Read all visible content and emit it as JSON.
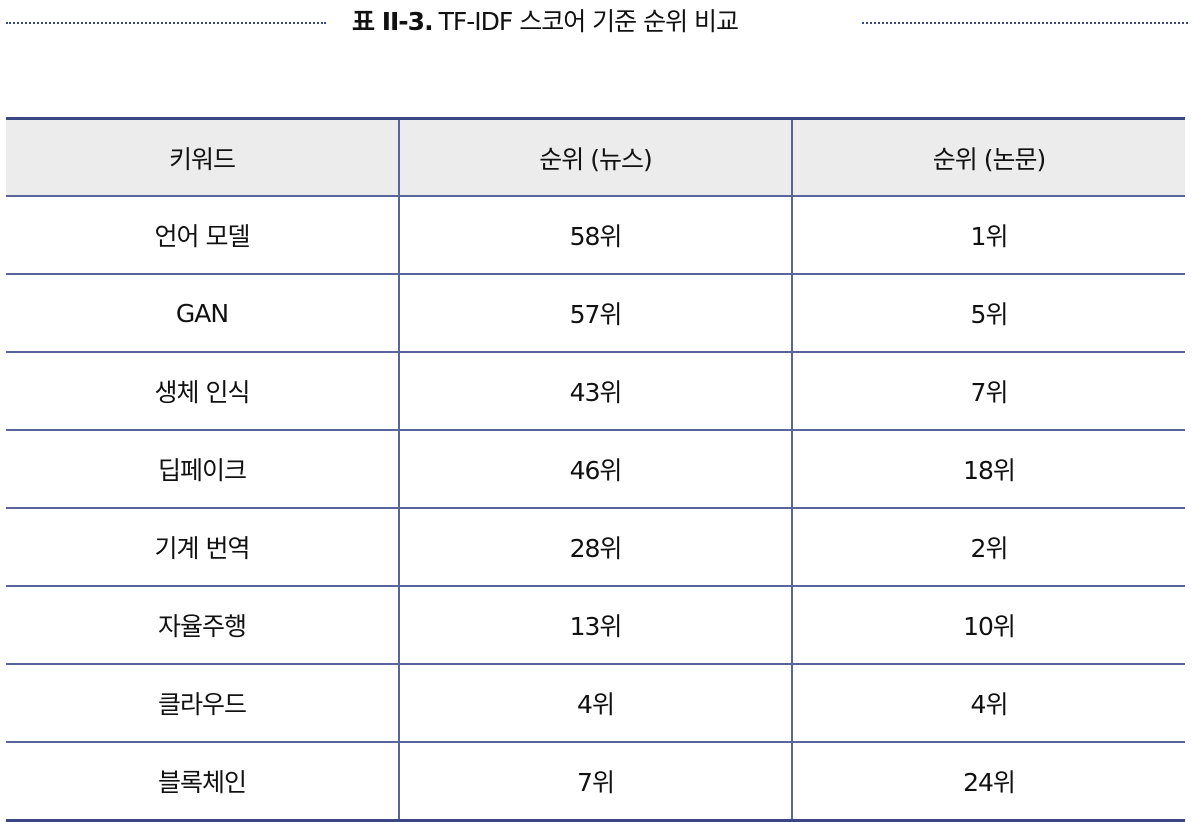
{
  "title": {
    "label": "표 II-3.",
    "text": "TF-IDF 스코어 기준 순위 비교"
  },
  "table": {
    "headers": [
      "키워드",
      "순위 (뉴스)",
      "순위 (논문)"
    ],
    "rows": [
      [
        "언어 모델",
        "58위",
        "1위"
      ],
      [
        "GAN",
        "57위",
        "5위"
      ],
      [
        "생체 인식",
        "43위",
        "7위"
      ],
      [
        "딥페이크",
        "46위",
        "18위"
      ],
      [
        "기계 번역",
        "28위",
        "2위"
      ],
      [
        "자율주행",
        "13위",
        "10위"
      ],
      [
        "클라우드",
        "4위",
        "4위"
      ],
      [
        "블록체인",
        "7위",
        "24위"
      ]
    ]
  },
  "colors": {
    "border": "#3a4784",
    "header_bg": "#ececec"
  }
}
